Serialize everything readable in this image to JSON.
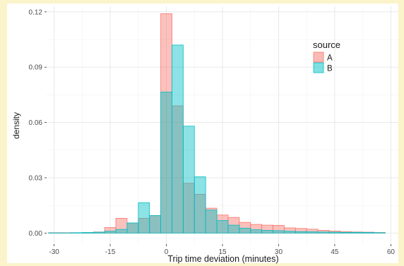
{
  "chart_data": {
    "type": "bar",
    "xlabel": "Trip time deviation (minutes)",
    "ylabel": "density",
    "xlim": [
      -32,
      62
    ],
    "ylim": [
      -0.006,
      0.123
    ],
    "x_ticks": [
      -30,
      -15,
      0,
      15,
      30,
      45,
      60
    ],
    "y_ticks": [
      0.0,
      0.03,
      0.06,
      0.09,
      0.12
    ],
    "x_tick_labels": [
      "-30",
      "-15",
      "0",
      "15",
      "30",
      "45",
      "60"
    ],
    "y_tick_labels": [
      "0.00",
      "0.03",
      "0.06",
      "0.09",
      "0.12"
    ],
    "bin_width": 3,
    "grid": true,
    "legend": {
      "title": "source",
      "placement": "top-right"
    },
    "series": [
      {
        "name": "A",
        "color": "#f8766d",
        "bins": [
          [
            -30,
            0.0002
          ],
          [
            -27,
            0.0002
          ],
          [
            -24,
            0.0002
          ],
          [
            -21,
            0.0003
          ],
          [
            -18,
            0.0006
          ],
          [
            -15,
            0.003
          ],
          [
            -12,
            0.008
          ],
          [
            -9,
            0.0055
          ],
          [
            -6,
            0.008
          ],
          [
            -3,
            0.0095
          ],
          [
            0,
            0.119
          ],
          [
            3,
            0.069
          ],
          [
            6,
            0.027
          ],
          [
            9,
            0.021
          ],
          [
            12,
            0.0135
          ],
          [
            15,
            0.0098
          ],
          [
            18,
            0.0085
          ],
          [
            21,
            0.0058
          ],
          [
            24,
            0.0047
          ],
          [
            27,
            0.0043
          ],
          [
            30,
            0.0042
          ],
          [
            33,
            0.0028
          ],
          [
            36,
            0.0025
          ],
          [
            39,
            0.0021
          ],
          [
            42,
            0.0015
          ],
          [
            45,
            0.0011
          ],
          [
            48,
            0.0008
          ],
          [
            51,
            0.0006
          ],
          [
            54,
            0.0005
          ],
          [
            57,
            0.0003
          ]
        ]
      },
      {
        "name": "B",
        "color": "#00bfc4",
        "bins": [
          [
            -30,
            0.0001
          ],
          [
            -27,
            0.0001
          ],
          [
            -24,
            0.0002
          ],
          [
            -21,
            0.0003
          ],
          [
            -18,
            0.0005
          ],
          [
            -15,
            0.001
          ],
          [
            -12,
            0.002
          ],
          [
            -9,
            0.0055
          ],
          [
            -6,
            0.0165
          ],
          [
            -3,
            0.0095
          ],
          [
            0,
            0.0765
          ],
          [
            3,
            0.102
          ],
          [
            6,
            0.058
          ],
          [
            9,
            0.0305
          ],
          [
            12,
            0.0125
          ],
          [
            15,
            0.0068
          ],
          [
            18,
            0.0043
          ],
          [
            21,
            0.0027
          ],
          [
            24,
            0.0018
          ],
          [
            27,
            0.0015
          ],
          [
            30,
            0.0013
          ],
          [
            33,
            0.001
          ],
          [
            36,
            0.0008
          ],
          [
            39,
            0.0007
          ],
          [
            42,
            0.0006
          ],
          [
            45,
            0.0005
          ],
          [
            48,
            0.0004
          ],
          [
            51,
            0.0004
          ],
          [
            54,
            0.0003
          ],
          [
            57,
            0.0002
          ]
        ]
      }
    ]
  }
}
